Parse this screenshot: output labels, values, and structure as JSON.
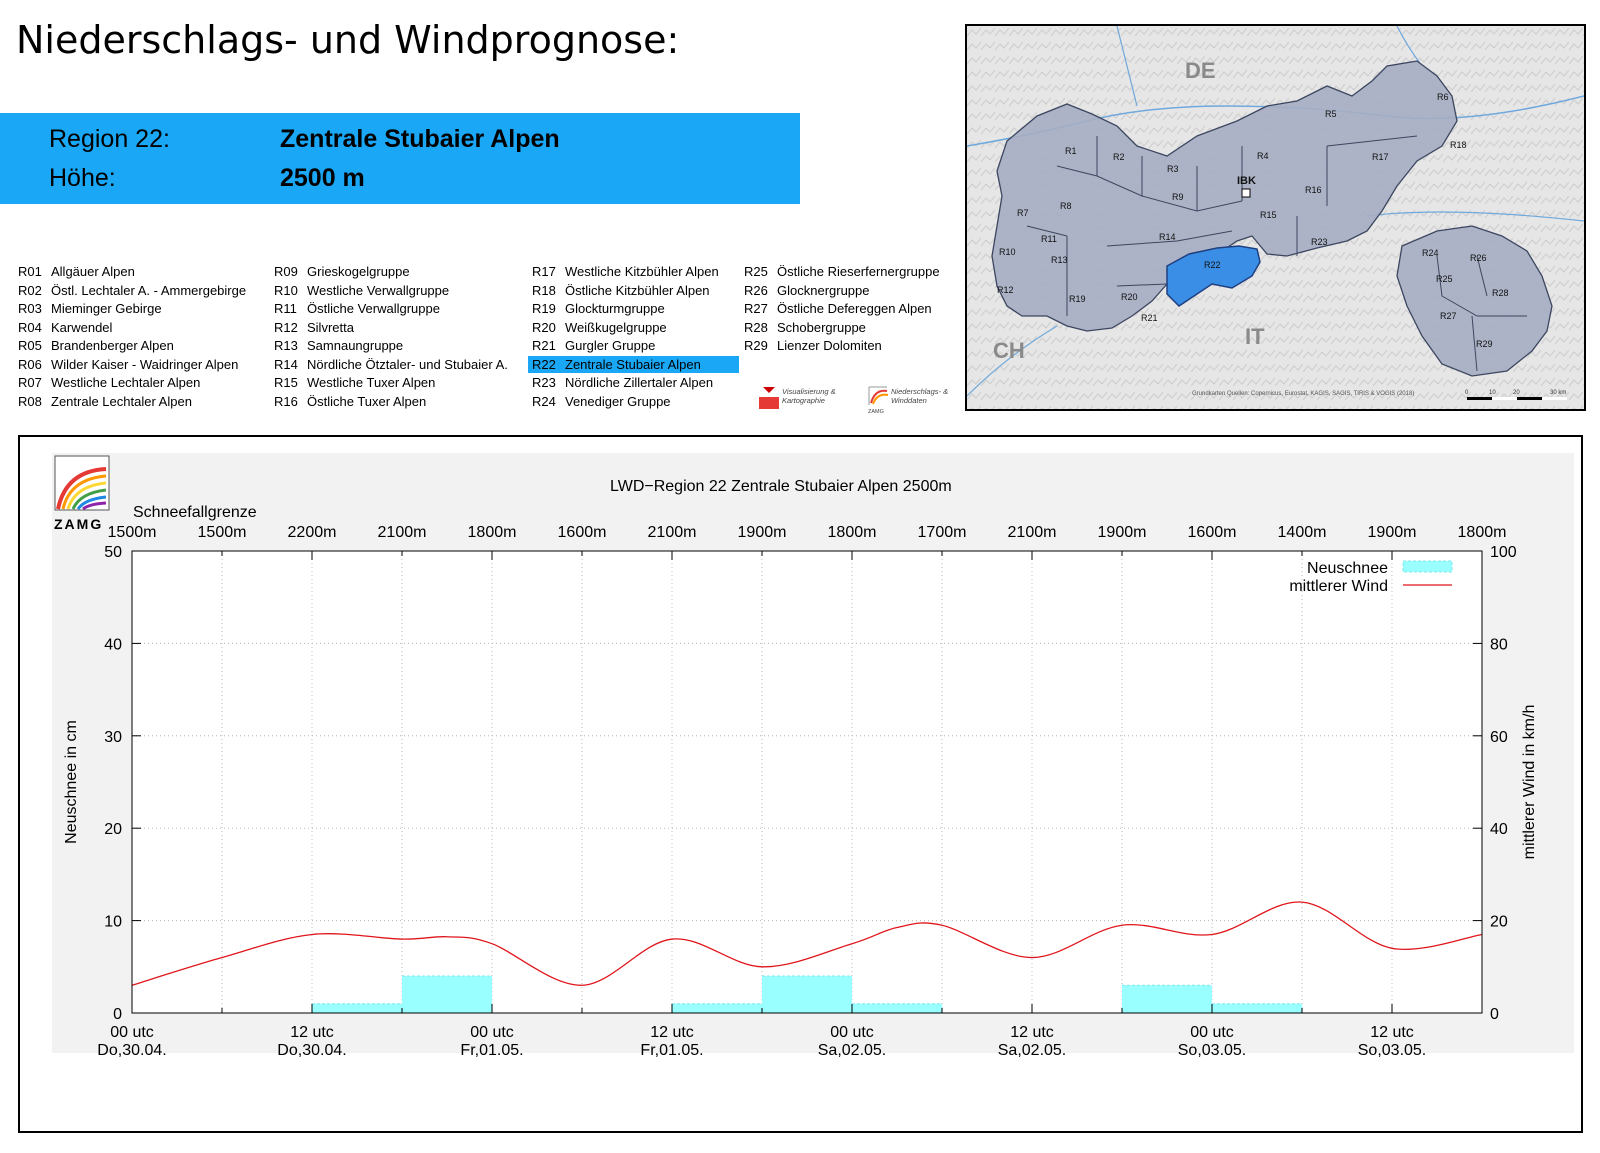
{
  "header": {
    "title": "Niederschlags- und Windprognose:",
    "region_label": "Region 22:",
    "region_name": "Zentrale Stubaier Alpen",
    "height_label": "Höhe:",
    "height_value": "2500 m",
    "accent_color": "#1aa7f5"
  },
  "regions_legend": [
    {
      "code": "R01",
      "name": "Allgäuer Alpen"
    },
    {
      "code": "R02",
      "name": "Östl. Lechtaler A. - Ammergebirge"
    },
    {
      "code": "R03",
      "name": "Mieminger Gebirge"
    },
    {
      "code": "R04",
      "name": "Karwendel"
    },
    {
      "code": "R05",
      "name": "Brandenberger Alpen"
    },
    {
      "code": "R06",
      "name": "Wilder Kaiser - Waidringer Alpen"
    },
    {
      "code": "R07",
      "name": "Westliche Lechtaler Alpen"
    },
    {
      "code": "R08",
      "name": "Zentrale Lechtaler Alpen"
    },
    {
      "code": "R09",
      "name": "Grieskogelgruppe"
    },
    {
      "code": "R10",
      "name": "Westliche Verwallgruppe"
    },
    {
      "code": "R11",
      "name": "Östliche Verwallgruppe"
    },
    {
      "code": "R12",
      "name": "Silvretta"
    },
    {
      "code": "R13",
      "name": "Samnaungruppe"
    },
    {
      "code": "R14",
      "name": "Nördliche Ötztaler- und Stubaier A."
    },
    {
      "code": "R15",
      "name": "Westliche Tuxer Alpen"
    },
    {
      "code": "R16",
      "name": "Östliche Tuxer Alpen"
    },
    {
      "code": "R17",
      "name": "Westliche Kitzbühler Alpen"
    },
    {
      "code": "R18",
      "name": "Östliche Kitzbühler Alpen"
    },
    {
      "code": "R19",
      "name": "Glockturmgruppe"
    },
    {
      "code": "R20",
      "name": "Weißkugelgruppe"
    },
    {
      "code": "R21",
      "name": "Gurgler Gruppe"
    },
    {
      "code": "R22",
      "name": "Zentrale Stubaier Alpen",
      "active": true
    },
    {
      "code": "R23",
      "name": "Nördliche Zillertaler Alpen"
    },
    {
      "code": "R24",
      "name": "Venediger Gruppe"
    },
    {
      "code": "R25",
      "name": "Östliche Rieserfernergruppe"
    },
    {
      "code": "R26",
      "name": "Glocknergruppe"
    },
    {
      "code": "R27",
      "name": "Östliche Defereggen Alpen"
    },
    {
      "code": "R28",
      "name": "Schobergruppe"
    },
    {
      "code": "R29",
      "name": "Lienzer Dolomiten"
    }
  ],
  "badges": {
    "left_line1": "Visualisierung &",
    "left_line2": "Kartographie",
    "right_line1": "Niederschlags- &",
    "right_line2": "Winddaten",
    "right_logo": "ZAMG"
  },
  "map": {
    "countries": [
      "DE",
      "CH",
      "IT"
    ],
    "city": "IBK",
    "region_labels": [
      "R1",
      "R2",
      "R3",
      "R4",
      "R5",
      "R6",
      "R7",
      "R8",
      "R9",
      "R10",
      "R11",
      "R12",
      "R13",
      "R14",
      "R15",
      "R16",
      "R17",
      "R18",
      "R19",
      "R20",
      "R21",
      "R22",
      "R23",
      "R24",
      "R25",
      "R26",
      "R27",
      "R28",
      "R29"
    ],
    "highlight_region": "R22",
    "attribution": "Grundkarten Quellen: Copernicus, Eurostat, KAGIS, SAGIS, TIRIS & VOGIS (2018)",
    "scale_labels": [
      "0",
      "10",
      "20",
      "30 km"
    ]
  },
  "chart_data": {
    "type": "bar+line",
    "title": "LWD−Region 22 Zentrale Stubaier Alpen 2500m",
    "logo_text": "ZAMG",
    "snowline_label": "Schneefallgrenze",
    "snowline": [
      "1500m",
      "1500m",
      "2200m",
      "2100m",
      "1800m",
      "1600m",
      "2100m",
      "1900m",
      "1800m",
      "1700m",
      "2100m",
      "1900m",
      "1600m",
      "1400m",
      "1900m",
      "1800m"
    ],
    "x_ticks": [
      {
        "line1": "00 utc",
        "line2": "Do,30.04."
      },
      {
        "line1": "12 utc",
        "line2": "Do,30.04."
      },
      {
        "line1": "00 utc",
        "line2": "Fr,01.05."
      },
      {
        "line1": "12 utc",
        "line2": "Fr,01.05."
      },
      {
        "line1": "00 utc",
        "line2": "Sa,02.05."
      },
      {
        "line1": "12 utc",
        "line2": "Sa,02.05."
      },
      {
        "line1": "00 utc",
        "line2": "So,03.05."
      },
      {
        "line1": "12 utc",
        "line2": "So,03.05."
      }
    ],
    "x_range_hours": [
      0,
      90
    ],
    "ylabel_left": "Neuschnee in cm",
    "ylabel_right": "mittlerer Wind in km/h",
    "ylim_left": [
      0,
      50
    ],
    "ylim_right": [
      0,
      100
    ],
    "yticks_left": [
      0,
      10,
      20,
      30,
      40,
      50
    ],
    "yticks_right": [
      0,
      20,
      40,
      60,
      80,
      100
    ],
    "grid": true,
    "legend_position": "top-right",
    "series": [
      {
        "name": "Neuschnee",
        "kind": "bar",
        "color": "#99ffff",
        "bars": [
          {
            "start_h": 0,
            "end_h": 6,
            "value": 0
          },
          {
            "start_h": 6,
            "end_h": 12,
            "value": 0
          },
          {
            "start_h": 12,
            "end_h": 18,
            "value": 1
          },
          {
            "start_h": 18,
            "end_h": 24,
            "value": 4
          },
          {
            "start_h": 24,
            "end_h": 30,
            "value": 0
          },
          {
            "start_h": 30,
            "end_h": 36,
            "value": 0
          },
          {
            "start_h": 36,
            "end_h": 42,
            "value": 1
          },
          {
            "start_h": 42,
            "end_h": 48,
            "value": 4
          },
          {
            "start_h": 48,
            "end_h": 54,
            "value": 1
          },
          {
            "start_h": 54,
            "end_h": 60,
            "value": 0
          },
          {
            "start_h": 60,
            "end_h": 66,
            "value": 0
          },
          {
            "start_h": 66,
            "end_h": 72,
            "value": 3
          },
          {
            "start_h": 72,
            "end_h": 78,
            "value": 1
          },
          {
            "start_h": 78,
            "end_h": 84,
            "value": 0
          },
          {
            "start_h": 84,
            "end_h": 90,
            "value": 0
          }
        ]
      },
      {
        "name": "mittlerer Wind",
        "kind": "line",
        "color": "#e0161b",
        "x_hours": [
          0,
          6,
          12,
          18,
          21,
          24,
          30,
          36,
          42,
          48,
          51,
          54,
          60,
          66,
          72,
          78,
          84,
          90
        ],
        "values": [
          6,
          12,
          17,
          16,
          16.5,
          15,
          6,
          16,
          10,
          15,
          18.5,
          19,
          12,
          19,
          17,
          24,
          14,
          17
        ]
      }
    ]
  }
}
